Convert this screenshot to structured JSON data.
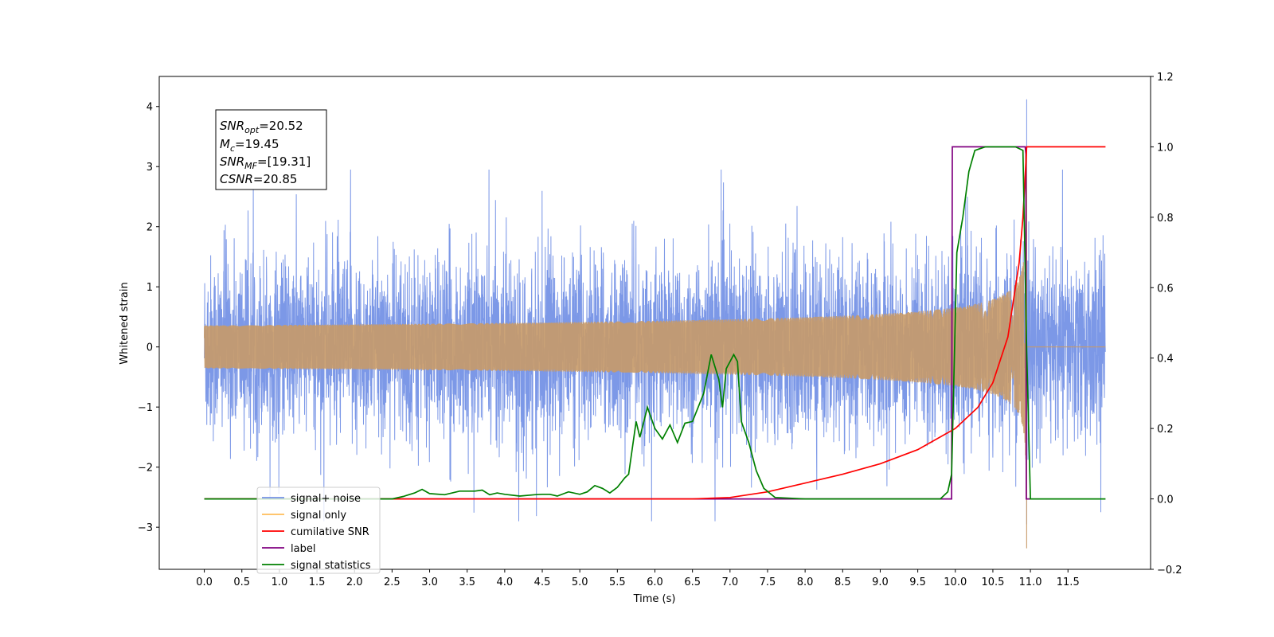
{
  "chart_data": {
    "type": "line",
    "xlabel": "Time (s)",
    "ylabel": "Whitened strain",
    "xlim": [
      -0.6,
      12.6
    ],
    "ylim_left": [
      -3.7,
      4.5
    ],
    "ylim_right": [
      -0.2,
      1.2
    ],
    "x_ticks": [
      "0.0",
      "0.5",
      "1.0",
      "1.5",
      "2.0",
      "2.5",
      "3.0",
      "3.5",
      "4.0",
      "4.5",
      "5.0",
      "5.5",
      "6.0",
      "6.5",
      "7.0",
      "7.5",
      "8.0",
      "8.5",
      "9.0",
      "9.5",
      "10.0",
      "10.5",
      "11.0",
      "11.5"
    ],
    "y_ticks_left": [
      "−3",
      "−2",
      "−1",
      "0",
      "1",
      "2",
      "3",
      "4"
    ],
    "y_ticks_right": [
      "−0.2",
      "0.0",
      "0.2",
      "0.4",
      "0.6",
      "0.8",
      "1.0",
      "1.2"
    ],
    "grid": false,
    "legend_position": "lower-left",
    "annotation": {
      "snr_opt": "=20.52",
      "mc": "=19.45",
      "snr_mf": "=[19.31]",
      "csnr": "=20.85"
    },
    "series": [
      {
        "name": "signal+ noise",
        "axis": "left",
        "color": "#7592e6",
        "description_values": {
          "x_range": [
            0.0,
            12.0
          ],
          "noise_std": 0.75,
          "max_peak": [
            10.95,
            4.12
          ],
          "min_peak": [
            10.95,
            -2.95
          ]
        }
      },
      {
        "name": "signal only",
        "axis": "left",
        "color": "#ffbd5a",
        "description_values": {
          "x_range": [
            0.0,
            12.0
          ],
          "chirp_end": 10.95,
          "peak_amplitude": 3.3
        }
      },
      {
        "name": "cumilative SNR",
        "axis": "right",
        "color": "#ff0000",
        "points": [
          [
            0.0,
            0.0
          ],
          [
            6.5,
            0.0
          ],
          [
            7.0,
            0.004
          ],
          [
            7.5,
            0.02
          ],
          [
            8.0,
            0.045
          ],
          [
            8.5,
            0.07
          ],
          [
            9.0,
            0.1
          ],
          [
            9.5,
            0.14
          ],
          [
            10.0,
            0.2
          ],
          [
            10.3,
            0.26
          ],
          [
            10.5,
            0.33
          ],
          [
            10.7,
            0.46
          ],
          [
            10.85,
            0.67
          ],
          [
            10.9,
            0.8
          ],
          [
            10.95,
            1.0
          ],
          [
            12.0,
            1.0
          ]
        ]
      },
      {
        "name": "label",
        "axis": "right",
        "color": "#800080",
        "points": [
          [
            0.0,
            0.0
          ],
          [
            9.95,
            0.0
          ],
          [
            9.96,
            1.0
          ],
          [
            10.93,
            1.0
          ],
          [
            10.94,
            0.98
          ],
          [
            10.945,
            0.0
          ],
          [
            11.0,
            0.0
          ]
        ]
      },
      {
        "name": "signal statistics",
        "axis": "right",
        "color": "#008000",
        "points": [
          [
            0.0,
            0.0
          ],
          [
            2.5,
            0.0
          ],
          [
            2.65,
            0.007
          ],
          [
            2.8,
            0.017
          ],
          [
            2.9,
            0.027
          ],
          [
            3.0,
            0.015
          ],
          [
            3.2,
            0.012
          ],
          [
            3.4,
            0.022
          ],
          [
            3.6,
            0.022
          ],
          [
            3.7,
            0.025
          ],
          [
            3.8,
            0.012
          ],
          [
            3.9,
            0.017
          ],
          [
            4.0,
            0.013
          ],
          [
            4.2,
            0.008
          ],
          [
            4.4,
            0.012
          ],
          [
            4.5,
            0.013
          ],
          [
            4.6,
            0.013
          ],
          [
            4.7,
            0.008
          ],
          [
            4.85,
            0.02
          ],
          [
            5.0,
            0.013
          ],
          [
            5.1,
            0.02
          ],
          [
            5.2,
            0.038
          ],
          [
            5.3,
            0.03
          ],
          [
            5.4,
            0.017
          ],
          [
            5.5,
            0.033
          ],
          [
            5.6,
            0.06
          ],
          [
            5.65,
            0.07
          ],
          [
            5.75,
            0.22
          ],
          [
            5.8,
            0.175
          ],
          [
            5.9,
            0.26
          ],
          [
            6.0,
            0.2
          ],
          [
            6.1,
            0.17
          ],
          [
            6.2,
            0.21
          ],
          [
            6.3,
            0.16
          ],
          [
            6.4,
            0.215
          ],
          [
            6.5,
            0.22
          ],
          [
            6.65,
            0.3
          ],
          [
            6.75,
            0.41
          ],
          [
            6.85,
            0.34
          ],
          [
            6.9,
            0.26
          ],
          [
            6.95,
            0.37
          ],
          [
            7.05,
            0.41
          ],
          [
            7.1,
            0.39
          ],
          [
            7.15,
            0.22
          ],
          [
            7.25,
            0.16
          ],
          [
            7.35,
            0.08
          ],
          [
            7.45,
            0.03
          ],
          [
            7.6,
            0.004
          ],
          [
            8.0,
            0.0
          ],
          [
            9.8,
            0.0
          ],
          [
            9.9,
            0.02
          ],
          [
            9.95,
            0.07
          ],
          [
            10.02,
            0.7
          ],
          [
            10.1,
            0.8
          ],
          [
            10.18,
            0.93
          ],
          [
            10.26,
            0.99
          ],
          [
            10.4,
            1.0
          ],
          [
            10.8,
            1.0
          ],
          [
            10.9,
            0.99
          ],
          [
            10.95,
            0.42
          ],
          [
            11.0,
            0.0
          ],
          [
            12.0,
            0.0
          ]
        ]
      }
    ]
  }
}
